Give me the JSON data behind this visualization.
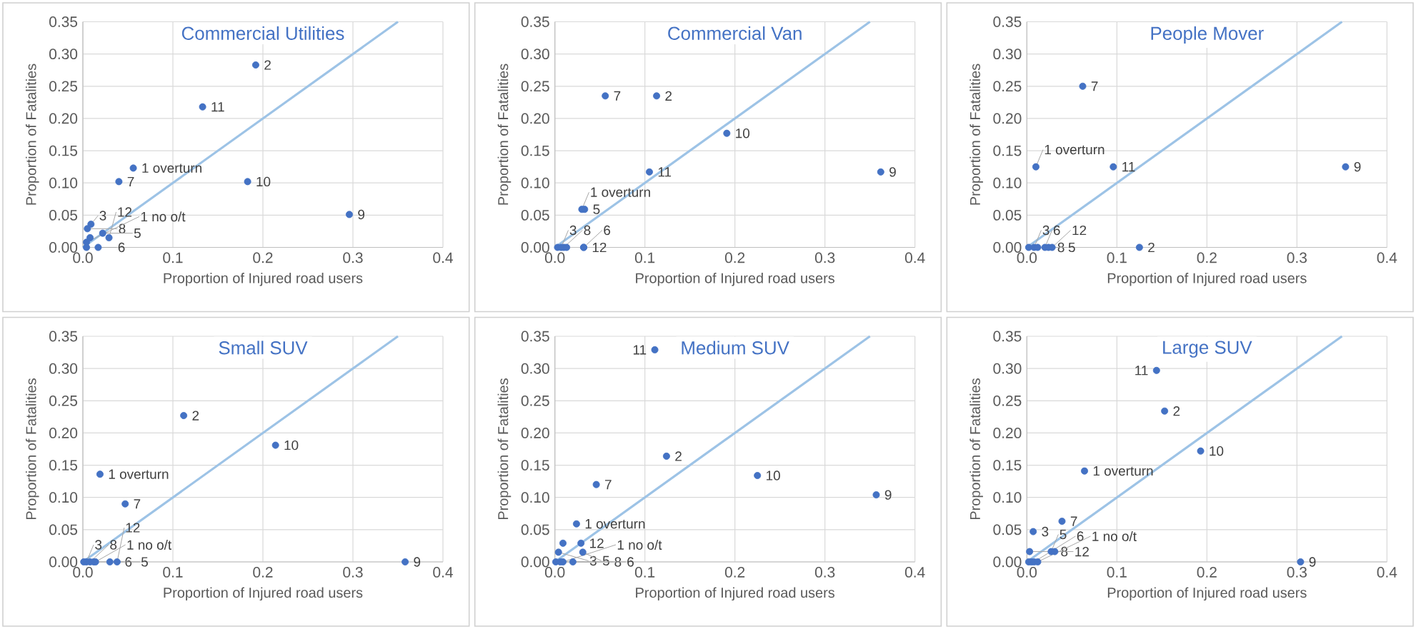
{
  "chart_data": [
    {
      "type": "scatter",
      "title": "Commercial Utilities",
      "xlabel": "Proportion of Injured road users",
      "ylabel": "Proportion of Fatalities",
      "xlim": [
        0,
        0.4
      ],
      "ylim": [
        0,
        0.35
      ],
      "xticks": [
        {
          "value": 0,
          "label": "0.0"
        },
        {
          "value": 0.1,
          "label": "0.1"
        },
        {
          "value": 0.2,
          "label": "0.2"
        },
        {
          "value": 0.3,
          "label": "0.3"
        },
        {
          "value": 0.4,
          "label": "0.4"
        }
      ],
      "yticks": [
        {
          "value": 0,
          "label": "0.00"
        },
        {
          "value": 0.05,
          "label": "0.05"
        },
        {
          "value": 0.1,
          "label": "0.10"
        },
        {
          "value": 0.15,
          "label": "0.15"
        },
        {
          "value": 0.2,
          "label": "0.20"
        },
        {
          "value": 0.25,
          "label": "0.25"
        },
        {
          "value": 0.3,
          "label": "0.30"
        },
        {
          "value": 0.35,
          "label": "0.35"
        }
      ],
      "grid": true,
      "series": [
        {
          "marker": "circle",
          "color": "#4472c4",
          "x": [
            0.192,
            0.133,
            0.056,
            0.04,
            0.183,
            0.296,
            0.009,
            0.005,
            0.022,
            0.029,
            0.008,
            0.004,
            0.004,
            0.017
          ],
          "values": [
            0.283,
            0.218,
            0.123,
            0.102,
            0.102,
            0.051,
            0.036,
            0.029,
            0.022,
            0.015,
            0.015,
            0.008,
            0,
            0
          ]
        },
        {
          "type": "line",
          "color": "#9dc3e6",
          "x": [
            0,
            0.35
          ],
          "values": [
            0,
            0.35
          ]
        }
      ],
      "annotations": [
        {
          "text": "2",
          "x": 0.192,
          "y": 0.283
        },
        {
          "text": "11",
          "x": 0.133,
          "y": 0.218
        },
        {
          "text": "1 overturn",
          "x": 0.056,
          "y": 0.123
        },
        {
          "text": "7",
          "x": 0.04,
          "y": 0.102
        },
        {
          "text": "10",
          "x": 0.183,
          "y": 0.102
        },
        {
          "text": "9",
          "x": 0.296,
          "y": 0.051
        },
        {
          "text": "3",
          "x": 0.009,
          "y": 0.036
        },
        {
          "text": "8",
          "x": 0.005,
          "y": 0.029
        },
        {
          "text": "5",
          "x": 0.022,
          "y": 0.022
        },
        {
          "text": "12",
          "x": 0.029,
          "y": 0.015
        },
        {
          "text": "1 no o/t",
          "x": 0.004,
          "y": 0.008
        },
        {
          "text": "6",
          "x": 0.017,
          "y": 0
        }
      ]
    },
    {
      "type": "scatter",
      "title": "Commercial Van",
      "xlabel": "Proportion of Injured road users",
      "ylabel": "Proportion of Fatalities",
      "xlim": [
        0,
        0.4
      ],
      "ylim": [
        0,
        0.35
      ],
      "xticks": [
        {
          "value": 0,
          "label": "0.0"
        },
        {
          "value": 0.1,
          "label": "0.1"
        },
        {
          "value": 0.2,
          "label": "0.2"
        },
        {
          "value": 0.3,
          "label": "0.3"
        },
        {
          "value": 0.4,
          "label": "0.4"
        }
      ],
      "yticks": [
        {
          "value": 0,
          "label": "0.00"
        },
        {
          "value": 0.05,
          "label": "0.05"
        },
        {
          "value": 0.1,
          "label": "0.10"
        },
        {
          "value": 0.15,
          "label": "0.15"
        },
        {
          "value": 0.2,
          "label": "0.20"
        },
        {
          "value": 0.25,
          "label": "0.25"
        },
        {
          "value": 0.3,
          "label": "0.30"
        },
        {
          "value": 0.35,
          "label": "0.35"
        }
      ],
      "grid": true,
      "series": [
        {
          "marker": "circle",
          "color": "#4472c4",
          "x": [
            0.056,
            0.113,
            0.191,
            0.105,
            0.362,
            0.033,
            0.03,
            0.003,
            0.007,
            0.01,
            0.013,
            0.032,
            0.032
          ],
          "values": [
            0.235,
            0.235,
            0.177,
            0.117,
            0.117,
            0.059,
            0.059,
            0,
            0,
            0,
            0,
            0,
            0
          ]
        },
        {
          "type": "line",
          "color": "#9dc3e6",
          "x": [
            0,
            0.35
          ],
          "values": [
            0,
            0.35
          ]
        }
      ],
      "annotations": [
        {
          "text": "7",
          "x": 0.056,
          "y": 0.235
        },
        {
          "text": "2",
          "x": 0.113,
          "y": 0.235
        },
        {
          "text": "10",
          "x": 0.191,
          "y": 0.177
        },
        {
          "text": "11",
          "x": 0.105,
          "y": 0.117
        },
        {
          "text": "9",
          "x": 0.362,
          "y": 0.117
        },
        {
          "text": "5",
          "x": 0.033,
          "y": 0.059
        },
        {
          "text": "1 overturn",
          "x": 0.03,
          "y": 0.059
        },
        {
          "text": "3",
          "x": 0.007,
          "y": 0
        },
        {
          "text": "8",
          "x": 0.01,
          "y": 0
        },
        {
          "text": "12",
          "x": 0.032,
          "y": 0
        },
        {
          "text": "6",
          "x": 0.032,
          "y": 0
        }
      ]
    },
    {
      "type": "scatter",
      "title": "People Mover",
      "xlabel": "Proportion of Injured road users",
      "ylabel": "Proportion of Fatalities",
      "xlim": [
        0,
        0.4
      ],
      "ylim": [
        0,
        0.35
      ],
      "xticks": [
        {
          "value": 0,
          "label": "0.0"
        },
        {
          "value": 0.1,
          "label": "0.1"
        },
        {
          "value": 0.2,
          "label": "0.2"
        },
        {
          "value": 0.3,
          "label": "0.3"
        },
        {
          "value": 0.4,
          "label": "0.4"
        }
      ],
      "yticks": [
        {
          "value": 0,
          "label": "0.00"
        },
        {
          "value": 0.05,
          "label": "0.05"
        },
        {
          "value": 0.1,
          "label": "0.10"
        },
        {
          "value": 0.15,
          "label": "0.15"
        },
        {
          "value": 0.2,
          "label": "0.20"
        },
        {
          "value": 0.25,
          "label": "0.25"
        },
        {
          "value": 0.3,
          "label": "0.30"
        },
        {
          "value": 0.35,
          "label": "0.35"
        }
      ],
      "grid": true,
      "series": [
        {
          "marker": "circle",
          "color": "#4472c4",
          "x": [
            0.062,
            0.01,
            0.096,
            0.354,
            0.125,
            0.002,
            0.008,
            0.012,
            0.02,
            0.024,
            0.028
          ],
          "values": [
            0.25,
            0.125,
            0.125,
            0.125,
            0,
            0,
            0,
            0,
            0,
            0,
            0
          ]
        },
        {
          "type": "line",
          "color": "#9dc3e6",
          "x": [
            0,
            0.35
          ],
          "values": [
            0,
            0.35
          ]
        }
      ],
      "annotations": [
        {
          "text": "7",
          "x": 0.062,
          "y": 0.25
        },
        {
          "text": "1 overturn",
          "x": 0.01,
          "y": 0.125
        },
        {
          "text": "11",
          "x": 0.096,
          "y": 0.125
        },
        {
          "text": "9",
          "x": 0.354,
          "y": 0.125
        },
        {
          "text": "2",
          "x": 0.125,
          "y": 0
        },
        {
          "text": "3",
          "x": 0.008,
          "y": 0
        },
        {
          "text": "8",
          "x": 0.012,
          "y": 0
        },
        {
          "text": "6",
          "x": 0.02,
          "y": 0
        },
        {
          "text": "5",
          "x": 0.024,
          "y": 0
        },
        {
          "text": "12",
          "x": 0.028,
          "y": 0
        }
      ]
    },
    {
      "type": "scatter",
      "title": "Small SUV",
      "xlabel": "Proportion of Injured road users",
      "ylabel": "Proportion of Fatalities",
      "xlim": [
        0,
        0.4
      ],
      "ylim": [
        0,
        0.35
      ],
      "xticks": [
        {
          "value": 0,
          "label": "0.0"
        },
        {
          "value": 0.1,
          "label": "0.1"
        },
        {
          "value": 0.2,
          "label": "0.2"
        },
        {
          "value": 0.3,
          "label": "0.3"
        },
        {
          "value": 0.4,
          "label": "0.4"
        }
      ],
      "yticks": [
        {
          "value": 0,
          "label": "0.00"
        },
        {
          "value": 0.05,
          "label": "0.05"
        },
        {
          "value": 0.1,
          "label": "0.10"
        },
        {
          "value": 0.15,
          "label": "0.15"
        },
        {
          "value": 0.2,
          "label": "0.20"
        },
        {
          "value": 0.25,
          "label": "0.25"
        },
        {
          "value": 0.3,
          "label": "0.30"
        },
        {
          "value": 0.35,
          "label": "0.35"
        }
      ],
      "grid": true,
      "series": [
        {
          "marker": "circle",
          "color": "#4472c4",
          "x": [
            0.112,
            0.214,
            0.019,
            0.047,
            0.358,
            0.001,
            0.004,
            0.008,
            0.012,
            0.014,
            0.03,
            0.038
          ],
          "values": [
            0.227,
            0.181,
            0.136,
            0.09,
            0,
            0,
            0,
            0,
            0,
            0,
            0,
            0
          ]
        },
        {
          "type": "line",
          "color": "#9dc3e6",
          "x": [
            0,
            0.35
          ],
          "values": [
            0,
            0.35
          ]
        }
      ],
      "annotations": [
        {
          "text": "2",
          "x": 0.112,
          "y": 0.227
        },
        {
          "text": "10",
          "x": 0.214,
          "y": 0.181
        },
        {
          "text": "1 overturn",
          "x": 0.019,
          "y": 0.136
        },
        {
          "text": "7",
          "x": 0.047,
          "y": 0.09
        },
        {
          "text": "9",
          "x": 0.358,
          "y": 0
        },
        {
          "text": "3",
          "x": 0.004,
          "y": 0
        },
        {
          "text": "8",
          "x": 0.008,
          "y": 0
        },
        {
          "text": "6",
          "x": 0.012,
          "y": 0
        },
        {
          "text": "1 no o/t",
          "x": 0.014,
          "y": 0
        },
        {
          "text": "5",
          "x": 0.03,
          "y": 0
        },
        {
          "text": "12",
          "x": 0.038,
          "y": 0
        }
      ]
    },
    {
      "type": "scatter",
      "title": "Medium SUV",
      "xlabel": "Proportion of Injured road users",
      "ylabel": "Proportion of Fatalities",
      "xlim": [
        0,
        0.4
      ],
      "ylim": [
        0,
        0.35
      ],
      "xticks": [
        {
          "value": 0,
          "label": "0.0"
        },
        {
          "value": 0.1,
          "label": "0.1"
        },
        {
          "value": 0.2,
          "label": "0.2"
        },
        {
          "value": 0.3,
          "label": "0.3"
        },
        {
          "value": 0.4,
          "label": "0.4"
        }
      ],
      "yticks": [
        {
          "value": 0,
          "label": "0.00"
        },
        {
          "value": 0.05,
          "label": "0.05"
        },
        {
          "value": 0.1,
          "label": "0.10"
        },
        {
          "value": 0.15,
          "label": "0.15"
        },
        {
          "value": 0.2,
          "label": "0.20"
        },
        {
          "value": 0.25,
          "label": "0.25"
        },
        {
          "value": 0.3,
          "label": "0.30"
        },
        {
          "value": 0.35,
          "label": "0.35"
        }
      ],
      "grid": true,
      "series": [
        {
          "marker": "circle",
          "color": "#4472c4",
          "x": [
            0.111,
            0.124,
            0.225,
            0.046,
            0.357,
            0.024,
            0.009,
            0.029,
            0.004,
            0.031,
            0.001,
            0.006,
            0.009,
            0.02
          ],
          "values": [
            0.329,
            0.164,
            0.134,
            0.12,
            0.104,
            0.059,
            0.029,
            0.029,
            0.015,
            0.015,
            0,
            0,
            0,
            0
          ]
        },
        {
          "type": "line",
          "color": "#9dc3e6",
          "x": [
            0,
            0.35
          ],
          "values": [
            0,
            0.35
          ]
        }
      ],
      "annotations": [
        {
          "text": "11",
          "x": 0.111,
          "y": 0.329
        },
        {
          "text": "2",
          "x": 0.124,
          "y": 0.164
        },
        {
          "text": "10",
          "x": 0.225,
          "y": 0.134
        },
        {
          "text": "7",
          "x": 0.046,
          "y": 0.12
        },
        {
          "text": "9",
          "x": 0.357,
          "y": 0.104
        },
        {
          "text": "1 overturn",
          "x": 0.024,
          "y": 0.059
        },
        {
          "text": "12",
          "x": 0.029,
          "y": 0.029
        },
        {
          "text": "3",
          "x": 0.004,
          "y": 0.015
        },
        {
          "text": "5",
          "x": 0.031,
          "y": 0.015
        },
        {
          "text": "8",
          "x": 0.006,
          "y": 0
        },
        {
          "text": "1 no o/t",
          "x": 0.009,
          "y": 0
        },
        {
          "text": "6",
          "x": 0.02,
          "y": 0
        }
      ]
    },
    {
      "type": "scatter",
      "title": "Large SUV",
      "xlabel": "Proportion of Injured road users",
      "ylabel": "Proportion of Fatalities",
      "xlim": [
        0,
        0.4
      ],
      "ylim": [
        0,
        0.35
      ],
      "xticks": [
        {
          "value": 0,
          "label": "0.0"
        },
        {
          "value": 0.1,
          "label": "0.1"
        },
        {
          "value": 0.2,
          "label": "0.2"
        },
        {
          "value": 0.3,
          "label": "0.3"
        },
        {
          "value": 0.4,
          "label": "0.4"
        }
      ],
      "yticks": [
        {
          "value": 0,
          "label": "0.00"
        },
        {
          "value": 0.05,
          "label": "0.05"
        },
        {
          "value": 0.1,
          "label": "0.10"
        },
        {
          "value": 0.15,
          "label": "0.15"
        },
        {
          "value": 0.2,
          "label": "0.20"
        },
        {
          "value": 0.25,
          "label": "0.25"
        },
        {
          "value": 0.3,
          "label": "0.30"
        },
        {
          "value": 0.35,
          "label": "0.35"
        }
      ],
      "grid": true,
      "series": [
        {
          "marker": "circle",
          "color": "#4472c4",
          "x": [
            0.144,
            0.153,
            0.193,
            0.064,
            0.039,
            0.007,
            0.003,
            0.027,
            0.031,
            0.304,
            0.002,
            0.005,
            0.008,
            0.012
          ],
          "values": [
            0.297,
            0.234,
            0.172,
            0.141,
            0.063,
            0.047,
            0.016,
            0.016,
            0.016,
            0,
            0,
            0,
            0,
            0
          ]
        },
        {
          "type": "line",
          "color": "#9dc3e6",
          "x": [
            0,
            0.35
          ],
          "values": [
            0,
            0.35
          ]
        }
      ],
      "annotations": [
        {
          "text": "11",
          "x": 0.144,
          "y": 0.297
        },
        {
          "text": "2",
          "x": 0.153,
          "y": 0.234
        },
        {
          "text": "10",
          "x": 0.193,
          "y": 0.172
        },
        {
          "text": "1 overturn",
          "x": 0.064,
          "y": 0.141
        },
        {
          "text": "7",
          "x": 0.039,
          "y": 0.063
        },
        {
          "text": "3",
          "x": 0.007,
          "y": 0.047
        },
        {
          "text": "8",
          "x": 0.003,
          "y": 0.016
        },
        {
          "text": "5",
          "x": 0.027,
          "y": 0.016
        },
        {
          "text": "12",
          "x": 0.031,
          "y": 0.016
        },
        {
          "text": "9",
          "x": 0.304,
          "y": 0
        },
        {
          "text": "6",
          "x": 0.008,
          "y": 0
        },
        {
          "text": "1 no o/t",
          "x": 0.012,
          "y": 0
        }
      ]
    }
  ]
}
